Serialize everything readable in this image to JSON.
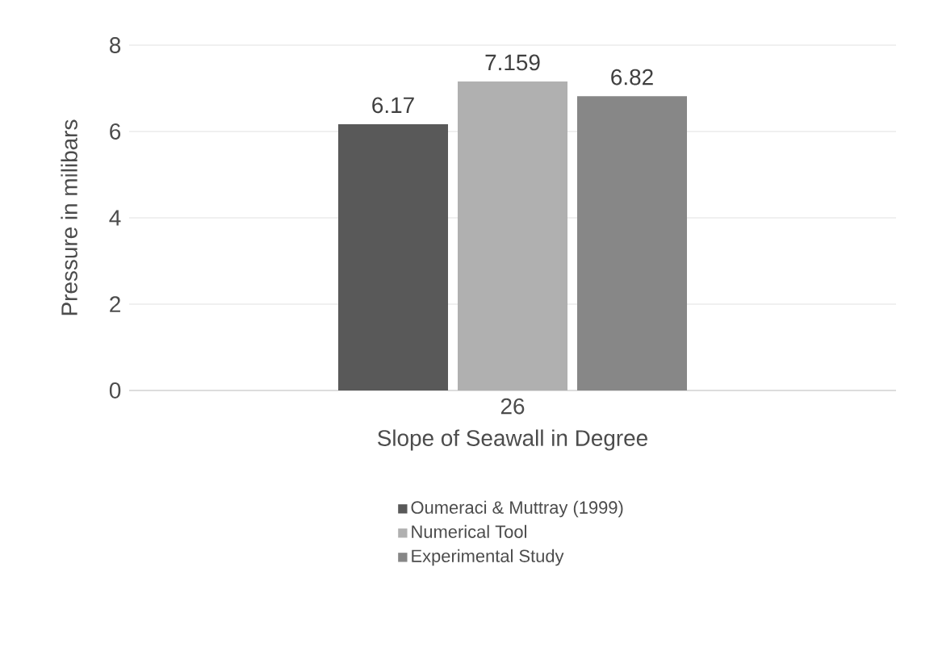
{
  "chart_data": {
    "type": "bar",
    "xlabel": "Slope of Seawall in Degree",
    "ylabel": "Pressure in milibars",
    "categories": [
      "26"
    ],
    "series": [
      {
        "name": "Oumeraci & Muttray (1999)",
        "color": "#595959",
        "values": [
          6.17
        ]
      },
      {
        "name": "Numerical Tool",
        "color": "#b0b0b0",
        "values": [
          7.159
        ]
      },
      {
        "name": "Experimental Study",
        "color": "#878787",
        "values": [
          6.82
        ]
      }
    ],
    "ylim": [
      0,
      8
    ],
    "yticks": [
      0,
      2,
      4,
      6,
      8
    ],
    "grid": "y",
    "legend": "bottom",
    "data_labels": true
  }
}
